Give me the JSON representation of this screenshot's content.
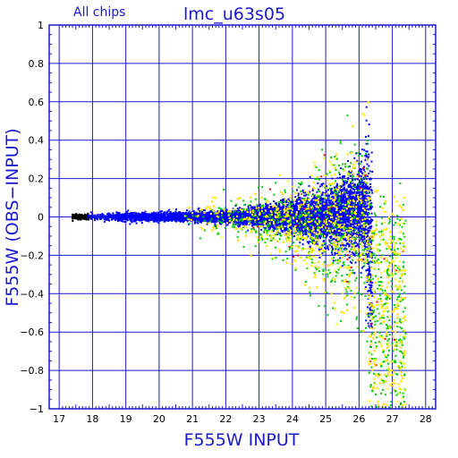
{
  "chart_data": {
    "type": "scatter",
    "title": "lmc_u63s05",
    "subtitle": "All chips",
    "xlabel": "F555W INPUT",
    "ylabel": "F555W (OBS−INPUT)",
    "xlim": [
      16.7,
      28.3
    ],
    "ylim": [
      -1,
      1
    ],
    "x_ticks": [
      17,
      18,
      19,
      20,
      21,
      22,
      23,
      24,
      25,
      26,
      27,
      28
    ],
    "y_ticks": [
      -1,
      -0.8,
      -0.6,
      -0.4,
      -0.2,
      0,
      0.2,
      0.4,
      0.6,
      0.8,
      1
    ],
    "x_tick_labels": [
      "17",
      "18",
      "19",
      "20",
      "21",
      "22",
      "23",
      "24",
      "25",
      "26",
      "27",
      "28"
    ],
    "y_tick_labels": [
      "−1",
      "−0.8",
      "−0.6",
      "−0.4",
      "−0.2",
      "0",
      "0.2",
      "0.4",
      "0.6",
      "0.8",
      "1"
    ],
    "grid": true,
    "colors": {
      "axis": "#1a1acc",
      "grid": "#1a1acc",
      "text": "#1a1acc",
      "series": [
        "#000000",
        "#0000ff",
        "#ff0000",
        "#00cc00",
        "#ffff00"
      ]
    },
    "series_groups": [
      {
        "color": "#000000",
        "x_range": [
          17.3,
          17.9
        ],
        "y_center": 0.0
      },
      {
        "color": "#0000ff",
        "x_range": [
          17.9,
          27.0
        ],
        "y_center": 0.0
      },
      {
        "color": "#ff0000",
        "x_range": [
          20.5,
          27.2
        ],
        "y_center": 0.0
      },
      {
        "color": "#00cc00",
        "x_range": [
          20.5,
          27.2
        ],
        "y_center": 0.0
      },
      {
        "color": "#ffff00",
        "x_range": [
          20.5,
          27.8
        ],
        "y_center": 0.0
      }
    ]
  }
}
